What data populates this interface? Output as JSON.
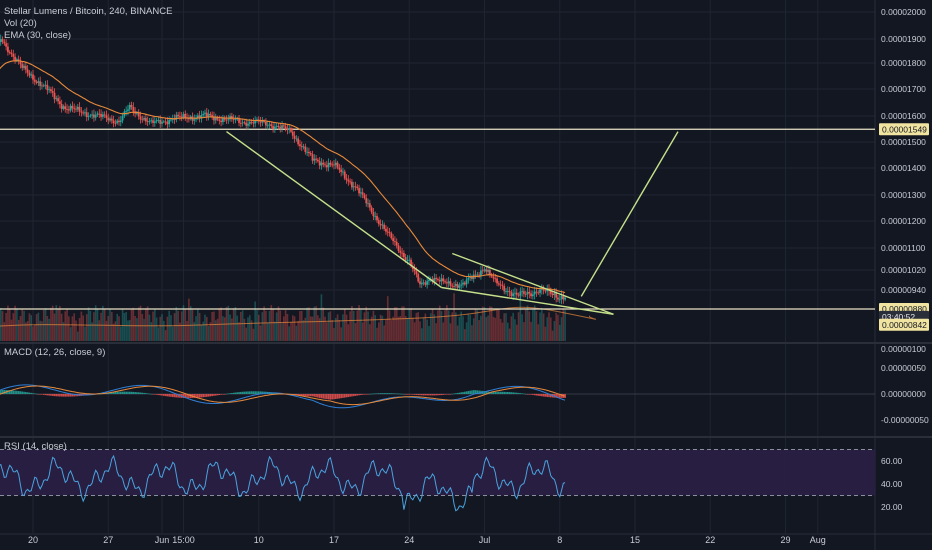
{
  "header": {
    "symbol_line": "Stellar Lumens / Bitcoin, 240, BINANCE",
    "vol_label": "Vol (20)",
    "ema_label": "EMA (30, close)",
    "macd_label": "MACD (12, 26, close, 9)",
    "rsi_label": "RSI (14, close)"
  },
  "colors": {
    "background": "#131722",
    "grid": "#1f2431",
    "up": "#26a69a",
    "down": "#ef5350",
    "ema": "#e8893a",
    "trendline": "#c5e08a",
    "macd_line": "#2f7fd6",
    "signal_line": "#e8893a",
    "rsi_line": "#4aa3df",
    "rsi_band": "#2a1f45",
    "horizontal_line": "#e9e2c6",
    "price_tag": "#f0e4a0"
  },
  "chart_data": [
    {
      "type": "candlestick",
      "pane": "price",
      "title": "Stellar Lumens / Bitcoin, 240, BINANCE",
      "ylim": [
        8e-06,
        2.05e-05
      ],
      "price_axis_labels": [
        "0.00002000",
        "0.00001900",
        "0.00001800",
        "0.00001700",
        "0.00001600",
        "0.00001500",
        "0.00001400",
        "0.00001300",
        "0.00001200",
        "0.00001100",
        "0.00001020",
        "0.00000940",
        "0.00000880"
      ],
      "close_series_anchors": [
        {
          "x": "May 16",
          "y": 1.75e-05
        },
        {
          "x": "May 17",
          "y": 1.9e-05
        },
        {
          "x": "May 19",
          "y": 1.78e-05
        },
        {
          "x": "May 21",
          "y": 1.71e-05
        },
        {
          "x": "May 23",
          "y": 1.63e-05
        },
        {
          "x": "May 26",
          "y": 1.6e-05
        },
        {
          "x": "May 28",
          "y": 1.58e-05
        },
        {
          "x": "May 29",
          "y": 1.63e-05
        },
        {
          "x": "May 31",
          "y": 1.57e-05
        },
        {
          "x": "Jun 2",
          "y": 1.59e-05
        },
        {
          "x": "Jun 5",
          "y": 1.6e-05
        },
        {
          "x": "Jun 8",
          "y": 1.58e-05
        },
        {
          "x": "Jun 11",
          "y": 1.57e-05
        },
        {
          "x": "Jun 13",
          "y": 1.54e-05
        },
        {
          "x": "Jun 15",
          "y": 1.43e-05
        },
        {
          "x": "Jun 17",
          "y": 1.41e-05
        },
        {
          "x": "Jun 19",
          "y": 1.33e-05
        },
        {
          "x": "Jun 21",
          "y": 1.21e-05
        },
        {
          "x": "Jun 22",
          "y": 1.15e-05
        },
        {
          "x": "Jun 24",
          "y": 1.05e-05
        },
        {
          "x": "Jun 25",
          "y": 9.6e-06
        },
        {
          "x": "Jun 26",
          "y": 9.9e-06
        },
        {
          "x": "Jun 27",
          "y": 9.7e-06
        },
        {
          "x": "Jun 29",
          "y": 9.6e-06
        },
        {
          "x": "Jul 1",
          "y": 1.03e-05
        },
        {
          "x": "Jul 2",
          "y": 9.7e-06
        },
        {
          "x": "Jul 4",
          "y": 9.2e-06
        },
        {
          "x": "Jul 6",
          "y": 9.4e-06
        },
        {
          "x": "Jul 8",
          "y": 9.2e-06
        }
      ],
      "price_tags": [
        {
          "label": "0.00001549",
          "value": 1.549e-05
        },
        {
          "label": "0.00000880",
          "value": 8.8e-06
        },
        {
          "label": "03:40:52",
          "value": 8.5e-06
        },
        {
          "label": "0.00000842",
          "value": 8.2e-06
        }
      ],
      "horizontal_lines": [
        1.549e-05,
        8.8e-06
      ],
      "trendlines": [
        {
          "from": {
            "x": "Jun 7",
            "y": 1.54e-05
          },
          "to": {
            "x": "Jun 27",
            "y": 9.5e-06
          }
        },
        {
          "from": {
            "x": "Jun 27",
            "y": 9.5e-06
          },
          "to": {
            "x": "Jul 13",
            "y": 8.6e-06
          }
        },
        {
          "from": {
            "x": "Jun 28",
            "y": 1.08e-05
          },
          "to": {
            "x": "Jul 13",
            "y": 8.6e-06
          }
        },
        {
          "from": {
            "x": "Jul 10",
            "y": 9.2e-06
          },
          "to": {
            "x": "Jul 19",
            "y": 1.54e-05
          }
        }
      ]
    },
    {
      "type": "bar",
      "pane": "volume",
      "title": "Vol (20)",
      "price_axis_labels": [
        "0.00000100"
      ]
    },
    {
      "type": "line",
      "pane": "macd",
      "title": "MACD (12, 26, close, 9)",
      "ylim": [
        -7.5e-07,
        7.5e-07
      ],
      "price_axis_labels": [
        "0.00000050",
        "0.00000000",
        "-0.00000050"
      ]
    },
    {
      "type": "line",
      "pane": "rsi",
      "title": "RSI (14, close)",
      "ylim": [
        10,
        80
      ],
      "levels": [
        70,
        30
      ],
      "price_axis_labels": [
        "60.00",
        "40.00",
        "20.00"
      ]
    }
  ],
  "x_axis": {
    "labels": [
      "20",
      "27",
      "Jun",
      "15:00",
      "10",
      "17",
      "24",
      "Jul",
      "8",
      "15",
      "22",
      "29",
      "Aug"
    ],
    "dates": [
      "May 20",
      "May 27",
      "Jun 1",
      "Jun 3",
      "Jun 10",
      "Jun 17",
      "Jun 24",
      "Jul 1",
      "Jul 8",
      "Jul 15",
      "Jul 22",
      "Jul 29",
      "Aug 1"
    ]
  }
}
